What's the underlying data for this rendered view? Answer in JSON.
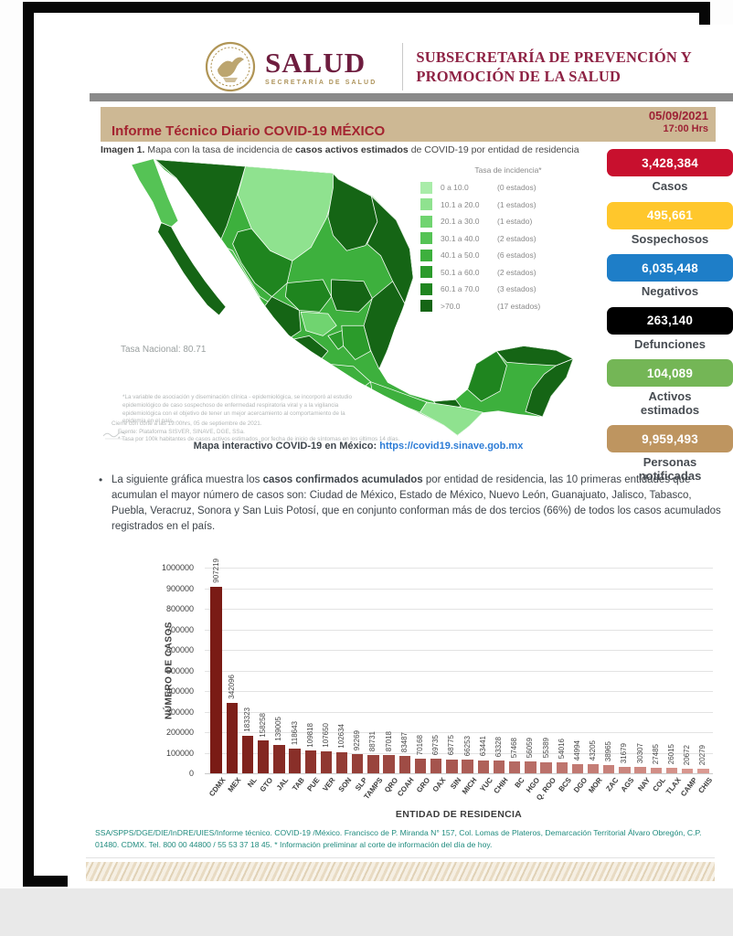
{
  "header": {
    "logo_title": "SALUD",
    "logo_subtitle": "SECRETARÍA DE SALUD",
    "subsecretaria_line1": "SUBSECRETARÍA DE PREVENCIÓN Y",
    "subsecretaria_line2": "PROMOCIÓN DE LA SALUD"
  },
  "title_bar": {
    "title": "Informe Técnico Diario COVID-19 MÉXICO",
    "date": "05/09/2021",
    "time": "17:00 Hrs"
  },
  "caption": {
    "prefix": "Imagen 1.",
    "before": " Mapa con la tasa de incidencia de ",
    "bold": "casos activos estimados",
    "after": " de COVID-19 por entidad de residencia"
  },
  "map": {
    "legend_title": "Tasa de incidencia*",
    "palette": [
      "#A9ECA9",
      "#8FE28F",
      "#70D470",
      "#55C355",
      "#3DB03D",
      "#2B9B2B",
      "#1F851F",
      "#156515"
    ],
    "legend": [
      {
        "range": "0  a  10.0",
        "count": "(0 estados)",
        "color": "#A9ECA9"
      },
      {
        "range": "10.1 a 20.0",
        "count": "(1 estados)",
        "color": "#8FE28F"
      },
      {
        "range": "20.1 a 30.0",
        "count": "(1 estado)",
        "color": "#70D470"
      },
      {
        "range": "30.1 a 40.0",
        "count": "(2 estados)",
        "color": "#55C355"
      },
      {
        "range": "40.1 a 50.0",
        "count": "(6 estados)",
        "color": "#3DB03D"
      },
      {
        "range": "50.1 a 60.0",
        "count": "(2 estados)",
        "color": "#2B9B2B"
      },
      {
        "range": "60.1 a 70.0",
        "count": "(3 estados)",
        "color": "#1F851F"
      },
      {
        "range": ">70.0",
        "count": "(17 estados)",
        "color": "#156515"
      }
    ],
    "tasa_nacional": "Tasa Nacional: 80.71",
    "footnote1": "*La variable de asociación y diseminación clínica - epidemiológica, se incorporó al estudio epidemiológico de caso sospechoso de enfermedad respiratoria viral y a la vigilancia epidemiológica con el objetivo de tener un mejor acercamiento al comportamiento de la epidemia en el país.",
    "footnote2_lines": [
      "Cierre con corte a las 19:00hrs, 05 de septiembre de 2021.",
      "Fuente: Plataforma SISVER, SINAVE, DGE, SSa.",
      "* Tasa por 100k habitantes de casos activos estimados, por fecha de inicio de síntomas en los últimos 14 días."
    ],
    "link_label": "Mapa interactivo COVID-19 en México: ",
    "link_url": "https://covid19.sinave.gob.mx"
  },
  "stats": [
    {
      "value": "3,428,384",
      "label": "Casos",
      "color": "#C8102E"
    },
    {
      "value": "495,661",
      "label": "Sospechosos",
      "color": "#FFC72C"
    },
    {
      "value": "6,035,448",
      "label": "Negativos",
      "color": "#1E7EC8"
    },
    {
      "value": "263,140",
      "label": "Defunciones",
      "color": "#000000"
    },
    {
      "value": "104,089",
      "label": "Activos\nestimados",
      "color": "#74B656"
    },
    {
      "value": "9,959,493",
      "label": "Personas\nnotificadas",
      "color": "#BE9560"
    }
  ],
  "bullet": {
    "marker": "•",
    "before": "La siguiente gráfica muestra los ",
    "bold": "casos confirmados acumulados",
    "after": " por entidad de residencia, las 10 primeras entidades que acumulan el mayor número de casos son: Ciudad de México, Estado de México, Nuevo León, Guanajuato, Jalisco, Tabasco, Puebla, Veracruz, Sonora y San Luis Potosí, que en conjunto conforman más de dos tercios (66%) de todos los casos acumulados registrados en el país."
  },
  "chart_data": {
    "type": "bar",
    "title": "",
    "xlabel": "ENTIDAD DE RESIDENCIA",
    "ylabel": "NÚMERO DE CASOS",
    "ylim": [
      0,
      1000000
    ],
    "ytick_step": 100000,
    "grid": true,
    "legend_position": "none",
    "bar_color_start": "#7A1B15",
    "bar_color_end": "#DA9A92",
    "categories": [
      "CDMX",
      "MEX",
      "NL",
      "GTO",
      "JAL",
      "TAB",
      "PUE",
      "VER",
      "SON",
      "SLP",
      "TAMPS",
      "QRO",
      "COAH",
      "GRO",
      "OAX",
      "SIN",
      "MICH",
      "YUC",
      "CHIH",
      "BC",
      "HGO",
      "Q. ROO",
      "BCS",
      "DGO",
      "MOR",
      "ZAC",
      "AGS",
      "NAY",
      "COL",
      "TLAX",
      "CAMP",
      "CHIS"
    ],
    "values": [
      907219,
      342096,
      183323,
      158258,
      139005,
      118643,
      109818,
      107650,
      102634,
      92269,
      88731,
      87018,
      83487,
      70168,
      69735,
      68775,
      66253,
      63441,
      63328,
      57468,
      56059,
      55389,
      54016,
      44994,
      43205,
      38965,
      31679,
      30307,
      27485,
      26015,
      20672,
      20279
    ]
  },
  "footer": {
    "text": "SSA/SPPS/DGE/DIE/InDRE/UIES/Informe técnico. COVID-19 /México. Francisco de P. Miranda N° 157, Col. Lomas de Plateros, Demarcación Territorial Álvaro Obregón, C.P. 01480. CDMX. Tel. 800 00 44800 / 55 53 37 18 45. * Información preliminar al corte de información del día de hoy."
  }
}
